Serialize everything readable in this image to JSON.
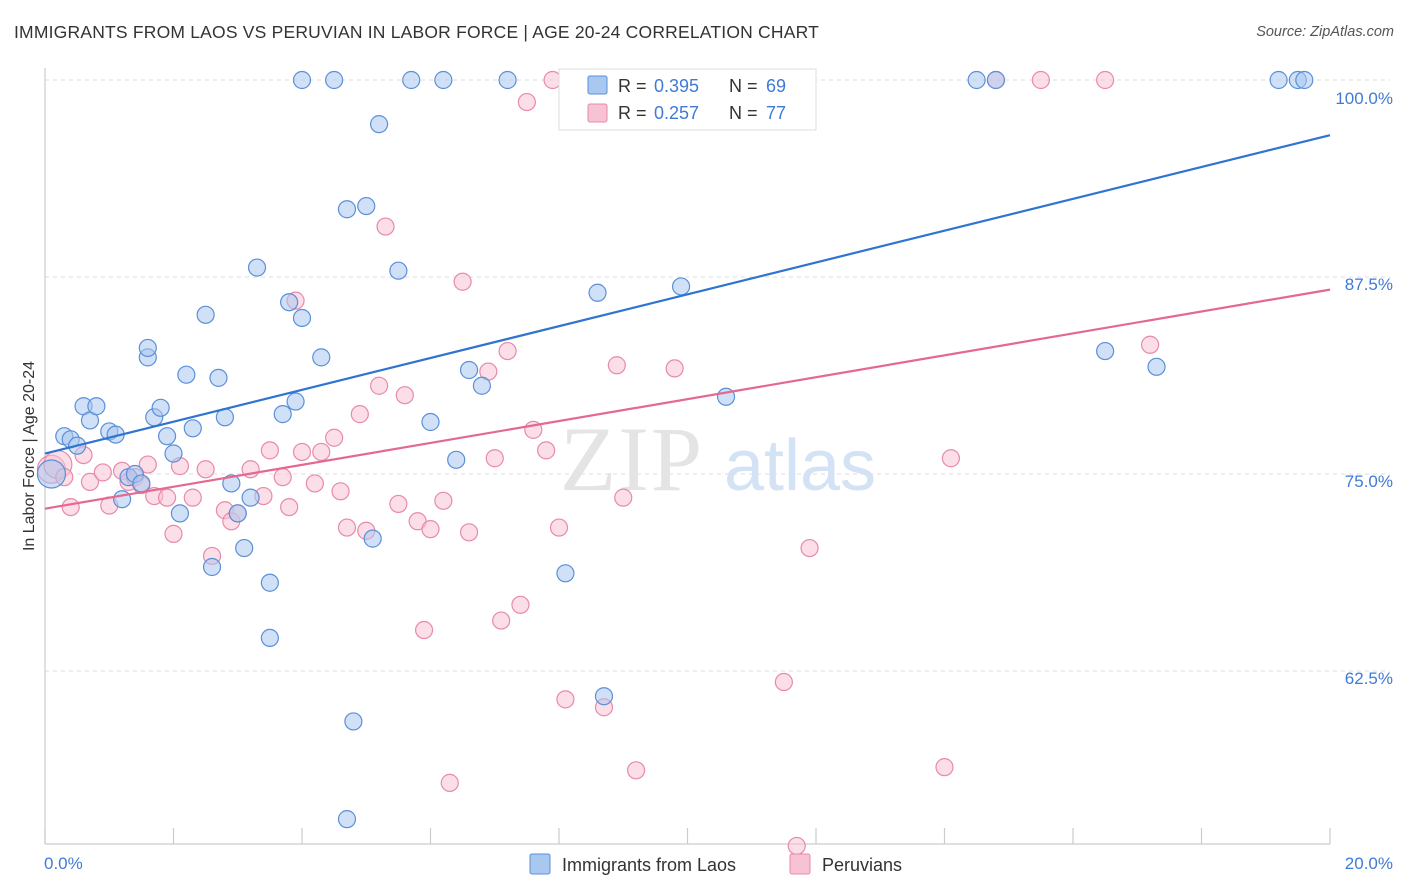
{
  "title": "IMMIGRANTS FROM LAOS VS PERUVIAN IN LABOR FORCE | AGE 20-24 CORRELATION CHART",
  "source": "Source: ZipAtlas.com",
  "watermark": {
    "zip": "ZIP",
    "atlas": "atlas"
  },
  "colors": {
    "blue_fill": "#a9c8f0",
    "blue_stroke": "#5b8fd8",
    "blue_line": "#2f74d0",
    "pink_fill": "#f7c2d3",
    "pink_stroke": "#e88aa8",
    "pink_line": "#e5688f",
    "tick_text": "#3f7bd6",
    "grid": "#dddddd"
  },
  "stats_legend": [
    {
      "r_label": "R =",
      "r_value": "0.395",
      "n_label": "N =",
      "n_value": "69"
    },
    {
      "r_label": "R =",
      "r_value": "0.257",
      "n_label": "N =",
      "n_value": "77"
    }
  ],
  "chart_data": {
    "type": "scatter",
    "xlabel": "",
    "ylabel": "In Labor Force | Age 20-24",
    "xlim": [
      0,
      20
    ],
    "ylim": [
      52,
      101
    ],
    "x_tick_labels": [
      "0.0%",
      "20.0%"
    ],
    "y_ticks": [
      62.5,
      75.0,
      87.5,
      100.0
    ],
    "y_tick_labels": [
      "62.5%",
      "75.0%",
      "87.5%",
      "100.0%"
    ],
    "grid": true,
    "legend_position": "bottom-center",
    "series": [
      {
        "name": "Immigrants from Laos",
        "r": 0.395,
        "n": 69,
        "trend": {
          "x0": 0,
          "y0": 76.3,
          "x1": 20,
          "y1": 96.5
        },
        "points": [
          [
            0.1,
            75.0
          ],
          [
            0.3,
            77.4
          ],
          [
            0.4,
            77.2
          ],
          [
            0.5,
            76.8
          ],
          [
            0.6,
            79.3
          ],
          [
            0.7,
            78.4
          ],
          [
            0.8,
            79.3
          ],
          [
            1.0,
            77.7
          ],
          [
            1.1,
            77.5
          ],
          [
            1.2,
            73.4
          ],
          [
            1.3,
            74.8
          ],
          [
            1.4,
            75.0
          ],
          [
            1.5,
            74.4
          ],
          [
            1.6,
            82.4
          ],
          [
            1.6,
            83.0
          ],
          [
            1.7,
            78.6
          ],
          [
            1.8,
            79.2
          ],
          [
            1.9,
            77.4
          ],
          [
            2.0,
            76.3
          ],
          [
            2.1,
            72.5
          ],
          [
            2.2,
            81.3
          ],
          [
            2.3,
            77.9
          ],
          [
            2.5,
            85.1
          ],
          [
            2.6,
            69.1
          ],
          [
            2.7,
            81.1
          ],
          [
            2.8,
            78.6
          ],
          [
            2.9,
            74.4
          ],
          [
            3.0,
            72.5
          ],
          [
            3.1,
            70.3
          ],
          [
            3.2,
            73.5
          ],
          [
            3.3,
            88.1
          ],
          [
            3.5,
            68.1
          ],
          [
            3.5,
            64.6
          ],
          [
            3.7,
            78.8
          ],
          [
            3.8,
            85.9
          ],
          [
            3.9,
            79.6
          ],
          [
            4.0,
            100.0
          ],
          [
            4.0,
            84.9
          ],
          [
            4.3,
            82.4
          ],
          [
            4.5,
            100.0
          ],
          [
            4.7,
            91.8
          ],
          [
            4.7,
            53.1
          ],
          [
            4.8,
            59.3
          ],
          [
            5.0,
            92.0
          ],
          [
            5.1,
            70.9
          ],
          [
            5.2,
            97.2
          ],
          [
            5.5,
            87.9
          ],
          [
            5.7,
            100.0
          ],
          [
            6.0,
            78.3
          ],
          [
            6.2,
            100.0
          ],
          [
            6.4,
            75.9
          ],
          [
            6.6,
            81.6
          ],
          [
            6.8,
            80.6
          ],
          [
            7.2,
            100.0
          ],
          [
            8.1,
            68.7
          ],
          [
            8.6,
            86.5
          ],
          [
            8.7,
            60.9
          ],
          [
            9.0,
            100.0
          ],
          [
            9.9,
            86.9
          ],
          [
            10.6,
            79.9
          ],
          [
            10.9,
            100.0
          ],
          [
            11.2,
            100.0
          ],
          [
            14.5,
            100.0
          ],
          [
            14.8,
            100.0
          ],
          [
            16.5,
            82.8
          ],
          [
            17.3,
            81.8
          ],
          [
            19.2,
            100.0
          ],
          [
            19.5,
            100.0
          ],
          [
            19.6,
            100.0
          ]
        ]
      },
      {
        "name": "Peruvians",
        "r": 0.257,
        "n": 77,
        "trend": {
          "x0": 0,
          "y0": 72.8,
          "x1": 20,
          "y1": 86.7
        },
        "points": [
          [
            0.1,
            75.3
          ],
          [
            0.2,
            75.6
          ],
          [
            0.3,
            74.8
          ],
          [
            0.4,
            72.9
          ],
          [
            0.6,
            76.2
          ],
          [
            0.7,
            74.5
          ],
          [
            0.9,
            75.1
          ],
          [
            1.0,
            73.0
          ],
          [
            1.2,
            75.2
          ],
          [
            1.3,
            74.5
          ],
          [
            1.4,
            74.8
          ],
          [
            1.5,
            74.3
          ],
          [
            1.6,
            75.6
          ],
          [
            1.7,
            73.6
          ],
          [
            1.9,
            73.5
          ],
          [
            2.0,
            71.2
          ],
          [
            2.1,
            75.5
          ],
          [
            2.3,
            73.5
          ],
          [
            2.5,
            75.3
          ],
          [
            2.6,
            69.8
          ],
          [
            2.8,
            72.7
          ],
          [
            2.9,
            72.0
          ],
          [
            3.0,
            72.5
          ],
          [
            3.2,
            75.3
          ],
          [
            3.4,
            73.6
          ],
          [
            3.5,
            76.5
          ],
          [
            3.7,
            74.8
          ],
          [
            3.8,
            72.9
          ],
          [
            3.9,
            86.0
          ],
          [
            4.0,
            76.4
          ],
          [
            4.2,
            74.4
          ],
          [
            4.3,
            76.4
          ],
          [
            4.5,
            77.3
          ],
          [
            4.6,
            73.9
          ],
          [
            4.7,
            71.6
          ],
          [
            4.9,
            78.8
          ],
          [
            5.0,
            71.4
          ],
          [
            5.2,
            80.6
          ],
          [
            5.3,
            90.7
          ],
          [
            5.5,
            73.1
          ],
          [
            5.6,
            80.0
          ],
          [
            5.8,
            72.0
          ],
          [
            5.9,
            65.1
          ],
          [
            6.0,
            71.5
          ],
          [
            6.2,
            73.3
          ],
          [
            6.3,
            55.4
          ],
          [
            6.5,
            87.2
          ],
          [
            6.6,
            71.3
          ],
          [
            6.9,
            81.5
          ],
          [
            7.0,
            76.0
          ],
          [
            7.1,
            65.7
          ],
          [
            7.2,
            82.8
          ],
          [
            7.4,
            66.7
          ],
          [
            7.6,
            77.8
          ],
          [
            7.8,
            76.5
          ],
          [
            7.9,
            100.0
          ],
          [
            8.0,
            71.6
          ],
          [
            8.1,
            60.7
          ],
          [
            8.5,
            100.0
          ],
          [
            8.7,
            60.2
          ],
          [
            8.9,
            81.9
          ],
          [
            9.0,
            73.5
          ],
          [
            9.2,
            56.2
          ],
          [
            9.6,
            100.0
          ],
          [
            9.8,
            81.7
          ],
          [
            9.9,
            100.0
          ],
          [
            10.4,
            100.0
          ],
          [
            11.5,
            61.8
          ],
          [
            11.7,
            51.4
          ],
          [
            11.9,
            70.3
          ],
          [
            14.0,
            56.4
          ],
          [
            14.1,
            76.0
          ],
          [
            14.8,
            100.0
          ],
          [
            15.5,
            100.0
          ],
          [
            16.5,
            100.0
          ],
          [
            17.2,
            83.2
          ],
          [
            7.5,
            98.6
          ]
        ]
      }
    ]
  }
}
